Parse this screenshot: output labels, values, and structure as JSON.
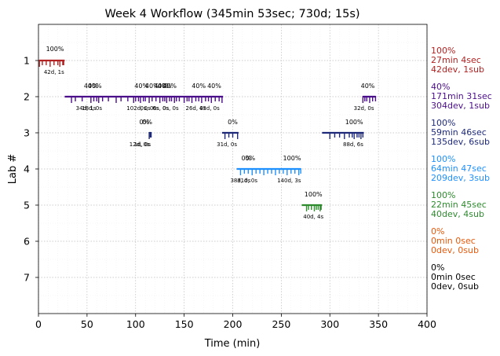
{
  "chart_data": {
    "type": "timeline",
    "title": "Week 4 Workflow (345min 53sec; 730d; 15s)",
    "xlabel": "Time (min)",
    "ylabel": "Lab #",
    "xlim": [
      0,
      400
    ],
    "ylim": [
      8,
      0
    ],
    "x_ticks": [
      "0",
      "50",
      "100",
      "150",
      "200",
      "250",
      "300",
      "350",
      "400"
    ],
    "y_ticks": [
      "1",
      "2",
      "3",
      "4",
      "5",
      "6",
      "7"
    ],
    "grid": true,
    "labs": [
      {
        "lab": 1,
        "color": "#b22222",
        "summary": [
          "100%",
          "27min 4sec",
          "42dev, 1sub"
        ],
        "segments": [
          {
            "start": 1,
            "end": 27,
            "pct": "100%",
            "pct_x": 17,
            "ann": "42d, 1s",
            "ann_x": 16,
            "ticks": [
              1,
              4,
              8,
              12,
              16,
              20,
              22,
              25,
              26
            ]
          }
        ]
      },
      {
        "lab": 2,
        "color": "#4b0e8a",
        "summary": [
          "40%",
          "171min 31sec",
          "304dev, 1sub"
        ],
        "segments": [
          {
            "start": 27,
            "end": 190,
            "pct": "",
            "pct_x": 0,
            "ann": "",
            "ann_x": 0,
            "ticks": [
              34,
              38,
              45,
              54,
              57,
              60,
              62,
              66,
              72,
              80,
              85,
              92,
              98,
              100,
              103,
              105,
              108,
              110,
              114,
              117,
              121,
              125,
              128,
              130,
              132,
              135,
              137,
              140,
              142,
              145,
              150,
              153,
              155,
              158,
              162,
              165,
              168,
              172,
              175,
              178,
              182,
              186,
              189
            ]
          }
        ],
        "pcts": [
          {
            "text": "40%",
            "x": 54
          },
          {
            "text": "40%",
            "x": 58
          },
          {
            "text": "40%",
            "x": 106
          },
          {
            "text": "40%",
            "x": 117
          },
          {
            "text": "40%",
            "x": 126
          },
          {
            "text": "40%",
            "x": 130
          },
          {
            "text": "40%",
            "x": 135
          },
          {
            "text": "40%",
            "x": 165
          },
          {
            "text": "40%",
            "x": 181
          },
          {
            "text": "40%",
            "x": 339
          }
        ],
        "anns": [
          {
            "text": "34d, 1s",
            "x": 49
          },
          {
            "text": "18d, 0s",
            "x": 55
          },
          {
            "text": "102d, 0s",
            "x": 103
          },
          {
            "text": "0s, 0s",
            "x": 113
          },
          {
            "text": "0s",
            "x": 121
          },
          {
            "text": "0s, 0s",
            "x": 126
          },
          {
            "text": "0s, 0s",
            "x": 136
          },
          {
            "text": "26d, 0s",
            "x": 162
          },
          {
            "text": "43d, 0s",
            "x": 176
          },
          {
            "text": "32d, 0s",
            "x": 335
          }
        ],
        "extra_segments": [
          {
            "start": 334,
            "end": 347,
            "ticks": [
              334,
              336,
              338,
              341,
              344,
              347
            ]
          }
        ]
      },
      {
        "lab": 3,
        "color": "#1f2a7a",
        "summary": [
          "100%",
          "59min 46sec",
          "135dev, 6sub"
        ],
        "segments": [
          {
            "start": 114,
            "end": 116,
            "ticks": [
              114,
              115,
              116
            ]
          },
          {
            "start": 189,
            "end": 206,
            "ticks": [
              192,
              196,
              200,
              205
            ]
          },
          {
            "start": 292,
            "end": 335,
            "ticks": [
              300,
              305,
              310,
              315,
              320,
              323,
              325,
              328,
              330,
              332,
              334
            ]
          }
        ],
        "pcts": [
          {
            "text": "0%",
            "x": 109
          },
          {
            "text": "0%",
            "x": 112
          },
          {
            "text": "0%",
            "x": 200
          },
          {
            "text": "100%",
            "x": 325
          }
        ],
        "anns": [
          {
            "text": "12d, 0s",
            "x": 104
          },
          {
            "text": "1d, 0s",
            "x": 107
          },
          {
            "text": "31d, 0s",
            "x": 194
          },
          {
            "text": "88d, 6s",
            "x": 324
          }
        ]
      },
      {
        "lab": 4,
        "color": "#1e90ff",
        "summary": [
          "100%",
          "64min 47sec",
          "209dev, 3sub"
        ],
        "segments": [
          {
            "start": 204,
            "end": 270,
            "ticks": [
              208,
              212,
              216,
              220,
              224,
              228,
              232,
              236,
              240,
              244,
              248,
              252,
              256,
              260,
              264,
              268,
              270
            ]
          }
        ],
        "pcts": [
          {
            "text": "0%",
            "x": 214
          },
          {
            "text": "0%",
            "x": 218
          },
          {
            "text": "100%",
            "x": 261
          }
        ],
        "anns": [
          {
            "text": "38d, 0s",
            "x": 208
          },
          {
            "text": "31d, 0s",
            "x": 215
          },
          {
            "text": "140d, 3s",
            "x": 258
          }
        ]
      },
      {
        "lab": 5,
        "color": "#2e8b2e",
        "summary": [
          "100%",
          "22min 45sec",
          "40dev, 4sub"
        ],
        "segments": [
          {
            "start": 271,
            "end": 292,
            "ticks": [
              276,
              278,
              281,
              284,
              286,
              288,
              290,
              291
            ]
          }
        ],
        "pcts": [
          {
            "text": "100%",
            "x": 283
          }
        ],
        "anns": [
          {
            "text": "40d, 4s",
            "x": 283
          }
        ]
      },
      {
        "lab": 6,
        "color": "#e8590c",
        "summary": [
          "0%",
          "0min 0sec",
          "0dev, 0sub"
        ],
        "segments": [],
        "pcts": [],
        "anns": []
      },
      {
        "lab": 7,
        "color": "#000000",
        "summary": [
          "0%",
          "0min 0sec",
          "0dev, 0sub"
        ],
        "segments": [],
        "pcts": [],
        "anns": []
      }
    ]
  }
}
